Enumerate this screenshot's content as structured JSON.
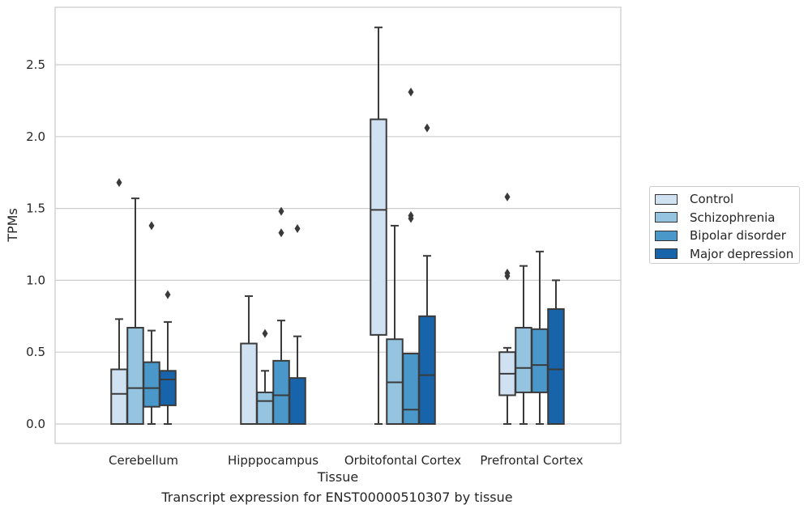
{
  "caption": "Transcript expression for ENST00000510307 by tissue",
  "chart_data": {
    "type": "box",
    "xlabel": "Tissue",
    "ylabel": "TPMs",
    "ylim": [
      -0.13,
      2.91
    ],
    "yticks": [
      "0.0",
      "0.5",
      "1.0",
      "1.5",
      "2.0",
      "2.5"
    ],
    "ytick_values": [
      0,
      0.5,
      1.0,
      1.5,
      2.0,
      2.5
    ],
    "grid": true,
    "legend_position": "right",
    "categories": [
      "Cerebellum",
      "Hipppocampus",
      "Orbitofontal Cortex",
      "Prefrontal Cortex"
    ],
    "series": [
      {
        "name": "Control",
        "color": "#d0e1f2",
        "boxes": [
          {
            "whislo": 0.0,
            "q1": 0.0,
            "med": 0.21,
            "q3": 0.38,
            "whishi": 0.73,
            "fliers": [
              1.68
            ]
          },
          {
            "whislo": 0.0,
            "q1": 0.0,
            "med": 0.0,
            "q3": 0.56,
            "whishi": 0.89,
            "fliers": []
          },
          {
            "whislo": 0.0,
            "q1": 0.62,
            "med": 1.49,
            "q3": 2.12,
            "whishi": 2.76,
            "fliers": []
          },
          {
            "whislo": 0.0,
            "q1": 0.2,
            "med": 0.35,
            "q3": 0.5,
            "whishi": 0.53,
            "fliers": [
              1.03,
              1.05,
              1.58
            ]
          }
        ]
      },
      {
        "name": "Schizophrenia",
        "color": "#94c4df",
        "boxes": [
          {
            "whislo": 0.0,
            "q1": 0.0,
            "med": 0.25,
            "q3": 0.67,
            "whishi": 1.57,
            "fliers": []
          },
          {
            "whislo": 0.0,
            "q1": 0.0,
            "med": 0.16,
            "q3": 0.22,
            "whishi": 0.37,
            "fliers": [
              0.63
            ]
          },
          {
            "whislo": 0.0,
            "q1": 0.0,
            "med": 0.29,
            "q3": 0.59,
            "whishi": 1.38,
            "fliers": []
          },
          {
            "whislo": 0.0,
            "q1": 0.22,
            "med": 0.39,
            "q3": 0.67,
            "whishi": 1.1,
            "fliers": []
          }
        ]
      },
      {
        "name": "Bipolar disorder",
        "color": "#4a98c9",
        "boxes": [
          {
            "whislo": 0.0,
            "q1": 0.12,
            "med": 0.25,
            "q3": 0.43,
            "whishi": 0.65,
            "fliers": [
              1.38
            ]
          },
          {
            "whislo": 0.0,
            "q1": 0.0,
            "med": 0.2,
            "q3": 0.44,
            "whishi": 0.72,
            "fliers": [
              1.33,
              1.48
            ]
          },
          {
            "whislo": 0.0,
            "q1": 0.0,
            "med": 0.1,
            "q3": 0.49,
            "whishi": 0.49,
            "fliers": [
              1.43,
              1.45,
              2.31
            ]
          },
          {
            "whislo": 0.0,
            "q1": 0.22,
            "med": 0.41,
            "q3": 0.66,
            "whishi": 1.2,
            "fliers": []
          }
        ]
      },
      {
        "name": "Major depression",
        "color": "#1764ab",
        "boxes": [
          {
            "whislo": 0.0,
            "q1": 0.13,
            "med": 0.31,
            "q3": 0.37,
            "whishi": 0.71,
            "fliers": [
              0.9
            ]
          },
          {
            "whislo": 0.0,
            "q1": 0.0,
            "med": 0.0,
            "q3": 0.32,
            "whishi": 0.61,
            "fliers": [
              1.36
            ]
          },
          {
            "whislo": 0.0,
            "q1": 0.0,
            "med": 0.34,
            "q3": 0.75,
            "whishi": 1.17,
            "fliers": [
              2.06
            ]
          },
          {
            "whislo": 0.0,
            "q1": 0.0,
            "med": 0.38,
            "q3": 0.8,
            "whishi": 1.0,
            "fliers": []
          }
        ]
      }
    ]
  }
}
